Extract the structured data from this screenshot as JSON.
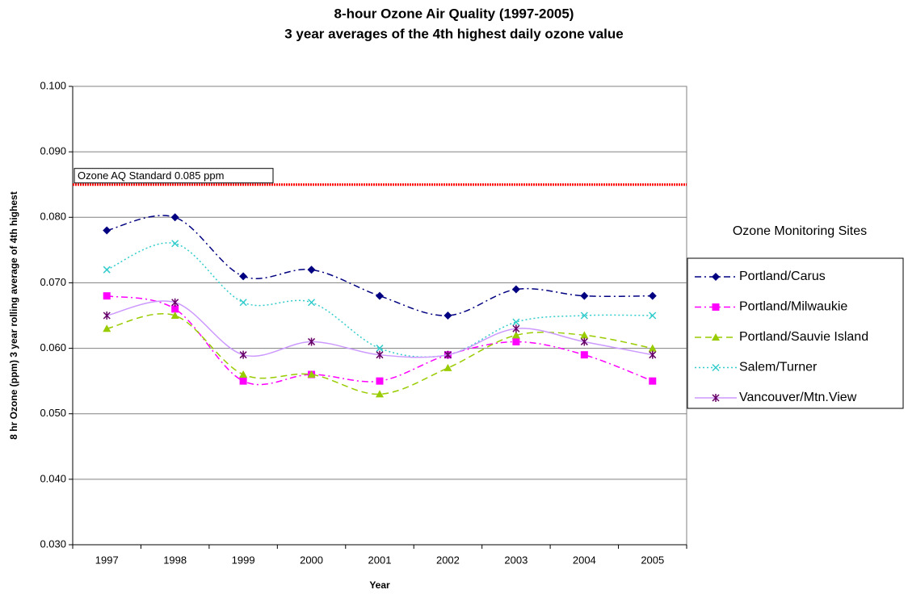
{
  "chart_data": {
    "type": "line",
    "title": "8-hour Ozone Air Quality (1997-2005)",
    "subtitle": "3 year averages of the 4th highest daily ozone value",
    "x_label": "Year",
    "y_label": "8 hr Ozone (ppm) 3 year rolling average of 4th highest",
    "legend_title": "Ozone Monitoring Sites",
    "legend_position": "right",
    "categories": [
      "1997",
      "1998",
      "1999",
      "2000",
      "2001",
      "2002",
      "2003",
      "2004",
      "2005"
    ],
    "series": [
      {
        "name": "Portland/Carus",
        "color": "#000080",
        "marker_color": "#000080",
        "values": [
          0.078,
          0.08,
          0.071,
          0.072,
          0.068,
          0.065,
          0.069,
          0.068,
          0.068
        ]
      },
      {
        "name": "Portland/Milwaukie",
        "color": "#ff00ff",
        "marker_color": "#ff00ff",
        "values": [
          0.068,
          0.066,
          0.055,
          0.056,
          0.055,
          0.059,
          0.061,
          0.059,
          0.055
        ]
      },
      {
        "name": "Portland/Sauvie Island",
        "color": "#99cc00",
        "marker_color": "#99cc00",
        "values": [
          0.063,
          0.065,
          0.056,
          0.056,
          0.053,
          0.057,
          0.062,
          0.062,
          0.06
        ]
      },
      {
        "name": "Salem/Turner",
        "color": "#33cccc",
        "marker_color": "#33cccc",
        "values": [
          0.072,
          0.076,
          0.067,
          0.067,
          0.06,
          0.059,
          0.064,
          0.065,
          0.065
        ]
      },
      {
        "name": "Vancouver/Mtn.View",
        "color": "#cc99ff",
        "marker_color": "#660066",
        "values": [
          0.065,
          0.067,
          0.059,
          0.061,
          0.059,
          0.059,
          0.063,
          0.061,
          0.059
        ]
      }
    ],
    "reference_line": {
      "value": 0.085,
      "label": "Ozone AQ Standard 0.085 ppm",
      "color": "#ff0000"
    },
    "ylim": [
      0.03,
      0.1
    ],
    "yticks": [
      {
        "value": 0.03,
        "label": "0.030"
      },
      {
        "value": 0.04,
        "label": "0.040"
      },
      {
        "value": 0.05,
        "label": "0.050"
      },
      {
        "value": 0.06,
        "label": "0.060"
      },
      {
        "value": 0.07,
        "label": "0.070"
      },
      {
        "value": 0.08,
        "label": "0.080"
      },
      {
        "value": 0.09,
        "label": "0.090"
      },
      {
        "value": 0.1,
        "label": "0.100"
      }
    ],
    "grid": true
  }
}
